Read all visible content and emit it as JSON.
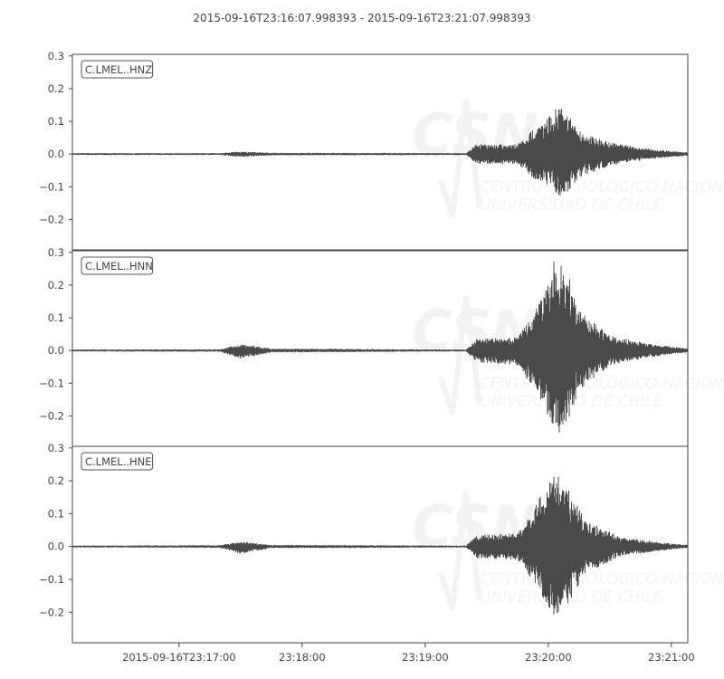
{
  "chart_data": {
    "type": "line",
    "title": "2015-09-16T23:16:07.998393  -  2015-09-16T23:21:07.998393",
    "x_range": [
      "23:16:07.998",
      "23:21:07.998"
    ],
    "x_ticks": [
      "23:17:00",
      "23:18:00",
      "23:19:00",
      "23:20:00",
      "23:21:00"
    ],
    "x_tick_labels": [
      "2015-09-16T23:17:00",
      "23:18:00",
      "23:19:00",
      "23:20:00",
      "23:21:00"
    ],
    "y_ticks": [
      0.3,
      0.2,
      0.1,
      0.0,
      -0.1,
      -0.2
    ],
    "y_tick_labels": [
      "0.3",
      "0.2",
      "0.1",
      "0.0",
      "−0.1",
      "−0.2"
    ],
    "ylim": [
      -0.293,
      0.305
    ],
    "grid": false,
    "line_color": "#4a4a4a",
    "watermark": {
      "logo": "CSN",
      "line1": "CENTRO SISMOLÓGICO NACIONAL",
      "line2": "UNIVERSIDAD DE CHILE"
    },
    "series": [
      {
        "name": "C.LMEL..HNZ",
        "envelope": [
          [
            "23:16:08",
            0.003,
            -0.003
          ],
          [
            "23:17:20",
            0.003,
            -0.003
          ],
          [
            "23:17:30",
            0.008,
            -0.009
          ],
          [
            "23:17:45",
            0.004,
            -0.004
          ],
          [
            "23:19:20",
            0.003,
            -0.003
          ],
          [
            "23:19:25",
            0.03,
            -0.03
          ],
          [
            "23:19:45",
            0.03,
            -0.03
          ],
          [
            "23:19:52",
            0.07,
            -0.07
          ],
          [
            "23:20:00",
            0.11,
            -0.1
          ],
          [
            "23:20:06",
            0.155,
            -0.14
          ],
          [
            "23:20:15",
            0.07,
            -0.07
          ],
          [
            "23:20:30",
            0.035,
            -0.035
          ],
          [
            "23:20:50",
            0.015,
            -0.015
          ],
          [
            "23:21:08",
            0.005,
            -0.005
          ]
        ]
      },
      {
        "name": "C.LMEL..HNN",
        "envelope": [
          [
            "23:16:08",
            0.003,
            -0.003
          ],
          [
            "23:17:20",
            0.004,
            -0.004
          ],
          [
            "23:17:30",
            0.02,
            -0.025
          ],
          [
            "23:17:45",
            0.006,
            -0.006
          ],
          [
            "23:19:20",
            0.003,
            -0.003
          ],
          [
            "23:19:25",
            0.035,
            -0.035
          ],
          [
            "23:19:45",
            0.04,
            -0.045
          ],
          [
            "23:19:52",
            0.1,
            -0.11
          ],
          [
            "23:20:00",
            0.2,
            -0.2
          ],
          [
            "23:20:03",
            0.28,
            -0.26
          ],
          [
            "23:20:08",
            0.27,
            -0.24
          ],
          [
            "23:20:15",
            0.12,
            -0.12
          ],
          [
            "23:20:30",
            0.045,
            -0.045
          ],
          [
            "23:20:50",
            0.02,
            -0.02
          ],
          [
            "23:21:08",
            0.006,
            -0.006
          ]
        ]
      },
      {
        "name": "C.LMEL..HNE",
        "envelope": [
          [
            "23:16:08",
            0.003,
            -0.003
          ],
          [
            "23:17:20",
            0.004,
            -0.004
          ],
          [
            "23:17:30",
            0.015,
            -0.022
          ],
          [
            "23:17:45",
            0.005,
            -0.005
          ],
          [
            "23:19:20",
            0.003,
            -0.003
          ],
          [
            "23:19:25",
            0.035,
            -0.035
          ],
          [
            "23:19:45",
            0.04,
            -0.04
          ],
          [
            "23:19:52",
            0.1,
            -0.1
          ],
          [
            "23:20:00",
            0.2,
            -0.18
          ],
          [
            "23:20:03",
            0.23,
            -0.21
          ],
          [
            "23:20:10",
            0.17,
            -0.17
          ],
          [
            "23:20:18",
            0.08,
            -0.08
          ],
          [
            "23:20:35",
            0.03,
            -0.03
          ],
          [
            "23:20:55",
            0.012,
            -0.012
          ],
          [
            "23:21:08",
            0.005,
            -0.005
          ]
        ]
      }
    ]
  }
}
